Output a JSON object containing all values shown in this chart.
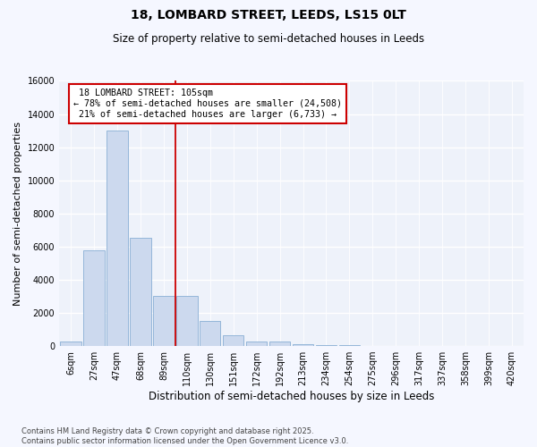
{
  "title": "18, LOMBARD STREET, LEEDS, LS15 0LT",
  "subtitle": "Size of property relative to semi-detached houses in Leeds",
  "xlabel": "Distribution of semi-detached houses by size in Leeds",
  "ylabel": "Number of semi-detached properties",
  "property_label": "18 LOMBARD STREET: 105sqm",
  "pct_smaller": 78,
  "count_smaller": 24508,
  "pct_larger": 21,
  "count_larger": 6733,
  "bin_labels": [
    "6sqm",
    "27sqm",
    "47sqm",
    "68sqm",
    "89sqm",
    "110sqm",
    "130sqm",
    "151sqm",
    "172sqm",
    "192sqm",
    "213sqm",
    "234sqm",
    "254sqm",
    "275sqm",
    "296sqm",
    "317sqm",
    "337sqm",
    "358sqm",
    "399sqm",
    "420sqm"
  ],
  "bar_values": [
    300,
    5800,
    13000,
    6550,
    3050,
    3050,
    1500,
    650,
    300,
    250,
    130,
    80,
    50,
    20,
    10,
    5,
    3,
    2,
    2,
    2
  ],
  "bar_color": "#ccd9ee",
  "bar_edge_color": "#89afd4",
  "vline_color": "#cc0000",
  "ylim": [
    0,
    16000
  ],
  "yticks": [
    0,
    2000,
    4000,
    6000,
    8000,
    10000,
    12000,
    14000,
    16000
  ],
  "background_color": "#eef2fa",
  "grid_color": "#ffffff",
  "footer_text": "Contains HM Land Registry data © Crown copyright and database right 2025.\nContains public sector information licensed under the Open Government Licence v3.0.",
  "title_fontsize": 10,
  "subtitle_fontsize": 8.5,
  "axis_label_fontsize": 8,
  "tick_fontsize": 7,
  "footer_fontsize": 6
}
